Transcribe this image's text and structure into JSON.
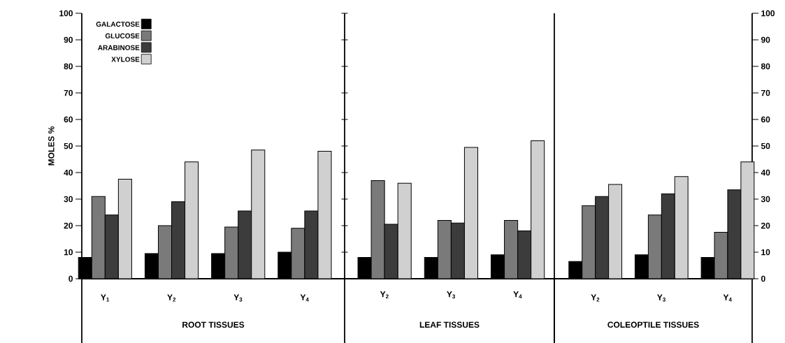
{
  "chart_data": [
    {
      "type": "bar",
      "xlabel": "ROOT TISSUES",
      "ylabel": "MOLES %",
      "categories": [
        "Y$_{1}$",
        "Y$_{2}$",
        "Y$_{3}$",
        "Y$_{4}$"
      ],
      "ylim": [
        0,
        100
      ],
      "yticks": [
        0,
        10,
        20,
        30,
        40,
        50,
        60,
        70,
        80,
        90,
        100
      ],
      "legend": "top left",
      "series": [
        {
          "name": "GALACTOSE",
          "color": "#000000",
          "values": [
            8,
            9.5,
            9.5,
            10
          ]
        },
        {
          "name": "GLUCOSE",
          "color": "#7a7a7a",
          "values": [
            31,
            20,
            19.5,
            19
          ]
        },
        {
          "name": "ARABINOSE",
          "color": "#3c3c3c",
          "values": [
            24,
            29,
            25.5,
            25.5
          ]
        },
        {
          "name": "XYLOSE",
          "color": "#d0d0d0",
          "values": [
            37.5,
            44,
            48.5,
            48
          ]
        }
      ]
    },
    {
      "type": "bar",
      "xlabel": "LEAF TISSUES",
      "categories": [
        "Y$_{2}$",
        "Y$_{3}$",
        "Y$_{4}$"
      ],
      "ylim": [
        0,
        100
      ],
      "yticks": [
        0,
        10,
        20,
        30,
        40,
        50,
        60,
        70,
        80,
        90,
        100
      ],
      "tick_labels": "x",
      "series": [
        {
          "color": "#000000",
          "values": [
            8,
            8,
            9
          ]
        },
        {
          "color": "#7a7a7a",
          "values": [
            37,
            22,
            22
          ]
        },
        {
          "color": "#3c3c3c",
          "values": [
            20.5,
            21,
            18
          ]
        },
        {
          "color": "#d0d0d0",
          "values": [
            36,
            49.5,
            52
          ]
        }
      ]
    },
    {
      "type": "bar",
      "xlabel": "COLEOPTILE TISSUES",
      "categories": [
        "Y$_{2}$",
        "Y$_{3}$",
        "Y$_{4}$"
      ],
      "y2lim": [
        0,
        100
      ],
      "y2ticks": [
        0,
        10,
        20,
        30,
        40,
        50,
        60,
        70,
        80,
        90,
        100
      ],
      "series": [
        {
          "color": "#000000",
          "axis": "y2",
          "values": [
            6.5,
            9,
            8
          ]
        },
        {
          "color": "#7a7a7a",
          "axis": "y2",
          "values": [
            27.5,
            24,
            17.5
          ]
        },
        {
          "color": "#3c3c3c",
          "axis": "y2",
          "values": [
            31,
            32,
            33.5
          ]
        },
        {
          "color": "#d0d0d0",
          "axis": "y2",
          "values": [
            35.5,
            38.5,
            44
          ]
        }
      ]
    }
  ]
}
